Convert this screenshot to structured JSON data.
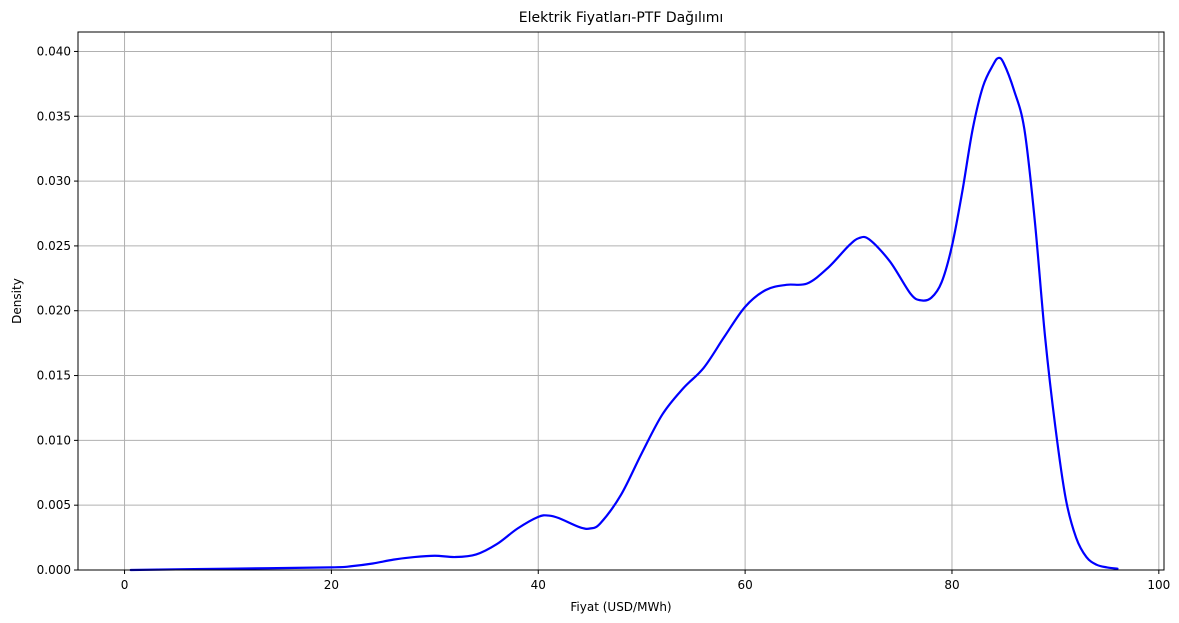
{
  "chart_data": {
    "type": "line",
    "title": "Elektrik Fiyatları-PTF Dağılımı",
    "xlabel": "Fiyat (USD/MWh)",
    "ylabel": "Density",
    "xlim": [
      -4.5,
      100.5
    ],
    "ylim": [
      0,
      0.0415
    ],
    "xticks": [
      0,
      20,
      40,
      60,
      80,
      100
    ],
    "yticks": [
      0.0,
      0.005,
      0.01,
      0.015,
      0.02,
      0.025,
      0.03,
      0.035,
      0.04
    ],
    "xtick_labels": [
      "0",
      "20",
      "40",
      "60",
      "80",
      "100"
    ],
    "ytick_labels": [
      "0.000",
      "0.005",
      "0.010",
      "0.015",
      "0.020",
      "0.025",
      "0.030",
      "0.035",
      "0.040"
    ],
    "grid": true,
    "colors": {
      "line": "#0000ff",
      "grid": "#b0b0b0",
      "axes": "#000000"
    },
    "series": [
      {
        "x": [
          0.6,
          10,
          20,
          22,
          24,
          26,
          28,
          30,
          32,
          34,
          36,
          38,
          40,
          41,
          42,
          44,
          45,
          46,
          48,
          50,
          52,
          54,
          56,
          58,
          60,
          62,
          64,
          66,
          68,
          70,
          71,
          72,
          74,
          76,
          77,
          78,
          79,
          80,
          81,
          82,
          83,
          84,
          84.5,
          85,
          86,
          87,
          88,
          89,
          90,
          91,
          92,
          93,
          94,
          95,
          96
        ],
        "y": [
          0.0,
          0.0001,
          0.0002,
          0.0003,
          0.0005,
          0.0008,
          0.001,
          0.0011,
          0.001,
          0.0012,
          0.002,
          0.0032,
          0.0041,
          0.0042,
          0.004,
          0.0033,
          0.0032,
          0.0036,
          0.0058,
          0.009,
          0.012,
          0.014,
          0.0156,
          0.018,
          0.0203,
          0.0216,
          0.022,
          0.0221,
          0.0233,
          0.025,
          0.0256,
          0.0255,
          0.0238,
          0.0213,
          0.0208,
          0.021,
          0.0222,
          0.025,
          0.0292,
          0.034,
          0.0373,
          0.039,
          0.0395,
          0.0391,
          0.037,
          0.034,
          0.027,
          0.018,
          0.011,
          0.0055,
          0.0025,
          0.001,
          0.0004,
          0.0002,
          0.0001
        ]
      }
    ]
  }
}
